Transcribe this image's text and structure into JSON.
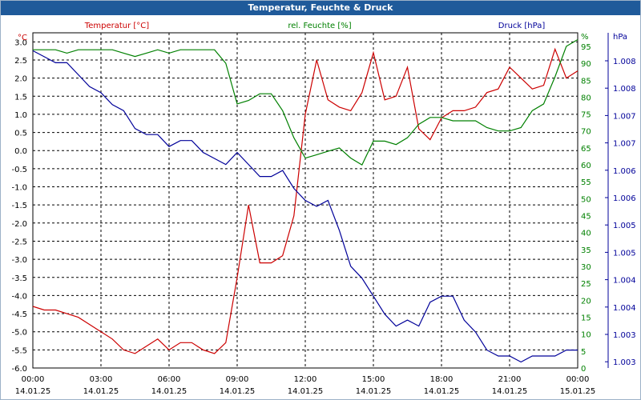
{
  "title": "Temperatur, Feuchte & Druck",
  "colors": {
    "temperature": "#cc0000",
    "humidity": "#008000",
    "pressure": "#000099",
    "title_bg": "#1f5a9a",
    "grid": "#000000"
  },
  "chart_data": {
    "type": "line",
    "title": "Temperatur, Feuchte & Druck",
    "grid": true,
    "x_ticks": [
      {
        "time": "00:00",
        "date": "14.01.25"
      },
      {
        "time": "03:00",
        "date": "14.01.25"
      },
      {
        "time": "06:00",
        "date": "14.01.25"
      },
      {
        "time": "09:00",
        "date": "14.01.25"
      },
      {
        "time": "12:00",
        "date": "14.01.25"
      },
      {
        "time": "15:00",
        "date": "14.01.25"
      },
      {
        "time": "18:00",
        "date": "14.01.25"
      },
      {
        "time": "21:00",
        "date": "14.01.25"
      },
      {
        "time": "00:00",
        "date": "15.01.25"
      }
    ],
    "x_range_hours": [
      0,
      24
    ],
    "axes": {
      "temperature": {
        "label": "Temperatur [°C]",
        "unit": "°C",
        "ylim": [
          -6,
          3.25
        ],
        "ticks": [
          "3.0",
          "2.5",
          "2.0",
          "1.5",
          "1.0",
          "0.5",
          "0.0",
          "-0.5",
          "-1.0",
          "-1.5",
          "-2.0",
          "-2.5",
          "-3.0",
          "-3.5",
          "-4.0",
          "-4.5",
          "-5.0",
          "-5.5",
          "-6.0"
        ]
      },
      "humidity": {
        "label": "rel. Feuchte [%]",
        "unit": "%",
        "ylim": [
          0,
          99
        ],
        "ticks": [
          "%",
          "95",
          "90",
          "85",
          "80",
          "75",
          "70",
          "65",
          "60",
          "55",
          "50",
          "45",
          "40",
          "35",
          "30",
          "25",
          "20",
          "15",
          "10",
          "5",
          "0"
        ]
      },
      "pressure": {
        "label": "Druck [hPa]",
        "unit": "hPa",
        "ylim": [
          1003.0,
          1008.6
        ],
        "ticks": [
          "1.008",
          "1.008",
          "1.007",
          "1.007",
          "1.006",
          "1.006",
          "1.005",
          "1.005",
          "1.004",
          "1.004",
          "1.003",
          "1.003"
        ]
      }
    },
    "series": [
      {
        "name": "Temperatur [°C]",
        "axis": "temperature",
        "x": [
          0,
          0.5,
          1,
          1.5,
          2,
          2.5,
          3,
          3.5,
          4,
          4.5,
          5,
          5.5,
          6,
          6.5,
          7,
          7.5,
          8,
          8.5,
          9,
          9.5,
          10,
          10.5,
          11,
          11.5,
          12,
          12.5,
          13,
          13.5,
          14,
          14.5,
          15,
          15.5,
          16,
          16.5,
          17,
          17.5,
          18,
          18.5,
          19,
          19.5,
          20,
          20.5,
          21,
          21.5,
          22,
          22.5,
          23,
          23.5,
          24
        ],
        "values": [
          -4.3,
          -4.4,
          -4.4,
          -4.5,
          -4.6,
          -4.8,
          -5.0,
          -5.2,
          -5.5,
          -5.6,
          -5.4,
          -5.2,
          -5.5,
          -5.3,
          -5.3,
          -5.5,
          -5.6,
          -5.3,
          -3.5,
          -1.5,
          -3.1,
          -3.1,
          -2.9,
          -1.8,
          1.0,
          2.5,
          1.4,
          1.2,
          1.1,
          1.6,
          2.7,
          1.4,
          1.5,
          2.3,
          0.6,
          0.3,
          0.9,
          1.1,
          1.1,
          1.2,
          1.6,
          1.7,
          2.3,
          2.0,
          1.7,
          1.8,
          2.8,
          2.0,
          2.2
        ]
      },
      {
        "name": "rel. Feuchte [%]",
        "axis": "humidity",
        "x": [
          0,
          0.5,
          1,
          1.5,
          2,
          2.5,
          3,
          3.5,
          4,
          4.5,
          5,
          5.5,
          6,
          6.5,
          7,
          7.5,
          8,
          8.5,
          9,
          9.5,
          10,
          10.5,
          11,
          11.5,
          12,
          12.5,
          13,
          13.5,
          14,
          14.5,
          15,
          15.5,
          16,
          16.5,
          17,
          17.5,
          18,
          18.5,
          19,
          19.5,
          20,
          20.5,
          21,
          21.5,
          22,
          22.5,
          23,
          23.5,
          24
        ],
        "values": [
          94,
          94,
          94,
          93,
          94,
          94,
          94,
          94,
          93,
          92,
          93,
          94,
          93,
          94,
          94,
          94,
          94,
          90,
          78,
          79,
          81,
          81,
          76,
          68,
          62,
          63,
          64,
          65,
          62,
          60,
          67,
          67,
          66,
          68,
          72,
          74,
          74,
          73,
          73,
          73,
          71,
          70,
          70,
          71,
          76,
          78,
          86,
          95,
          97
        ]
      },
      {
        "name": "Druck [hPa]",
        "axis": "pressure",
        "x": [
          0,
          0.5,
          1,
          1.5,
          2,
          2.5,
          3,
          3.5,
          4,
          4.5,
          5,
          5.5,
          6,
          6.5,
          7,
          7.5,
          8,
          8.5,
          9,
          9.5,
          10,
          10.5,
          11,
          11.5,
          12,
          12.5,
          13,
          13.5,
          14,
          14.5,
          15,
          15.5,
          16,
          16.5,
          17,
          17.5,
          18,
          18.5,
          19,
          19.5,
          20,
          20.5,
          21,
          21.5,
          22,
          22.5,
          23,
          23.5,
          24
        ],
        "values": [
          1008.3,
          1008.2,
          1008.1,
          1008.1,
          1007.9,
          1007.7,
          1007.6,
          1007.4,
          1007.3,
          1007.0,
          1006.9,
          1006.9,
          1006.7,
          1006.8,
          1006.8,
          1006.6,
          1006.5,
          1006.4,
          1006.6,
          1006.4,
          1006.2,
          1006.2,
          1006.3,
          1006.0,
          1005.8,
          1005.7,
          1005.8,
          1005.3,
          1004.7,
          1004.5,
          1004.2,
          1003.9,
          1003.7,
          1003.8,
          1003.7,
          1004.1,
          1004.2,
          1004.2,
          1003.8,
          1003.6,
          1003.3,
          1003.2,
          1003.2,
          1003.1,
          1003.2,
          1003.2,
          1003.2,
          1003.3,
          1003.3
        ]
      }
    ]
  }
}
